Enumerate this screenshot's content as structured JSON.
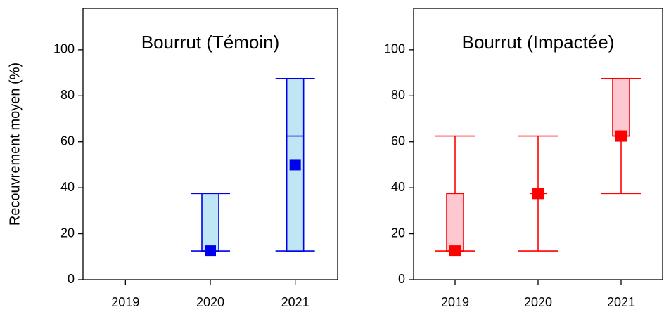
{
  "chart_data": [
    {
      "type": "box",
      "title": "Bourrut (Témoin)",
      "ylabel": "Recouvrement moyen (%)",
      "categories": [
        "2019",
        "2020",
        "2021"
      ],
      "whisker_low": [
        null,
        12.5,
        12.5
      ],
      "q1": [
        null,
        12.5,
        12.5
      ],
      "median": [
        null,
        12.5,
        62.5
      ],
      "q3": [
        null,
        37.5,
        87.5
      ],
      "whisker_high": [
        null,
        37.5,
        87.5
      ],
      "mean": [
        null,
        12.5,
        50
      ],
      "color": "#0000ee",
      "fill": "#bfe6f5",
      "ylim": [
        0,
        118
      ],
      "yticks": [
        0,
        20,
        40,
        60,
        80,
        100
      ]
    },
    {
      "type": "box",
      "title": "Bourrut (Impactée)",
      "categories": [
        "2019",
        "2020",
        "2021"
      ],
      "whisker_low": [
        12.5,
        12.5,
        37.5
      ],
      "q1": [
        12.5,
        37.5,
        62.5
      ],
      "median": [
        12.5,
        37.5,
        62.5
      ],
      "q3": [
        37.5,
        37.5,
        87.5
      ],
      "whisker_high": [
        62.5,
        62.5,
        87.5
      ],
      "mean": [
        12.5,
        37.5,
        62.5
      ],
      "color": "#ff0000",
      "fill": "#ffc8d0",
      "ylim": [
        0,
        118
      ],
      "yticks": [
        0,
        20,
        40,
        60,
        80,
        100
      ]
    }
  ]
}
